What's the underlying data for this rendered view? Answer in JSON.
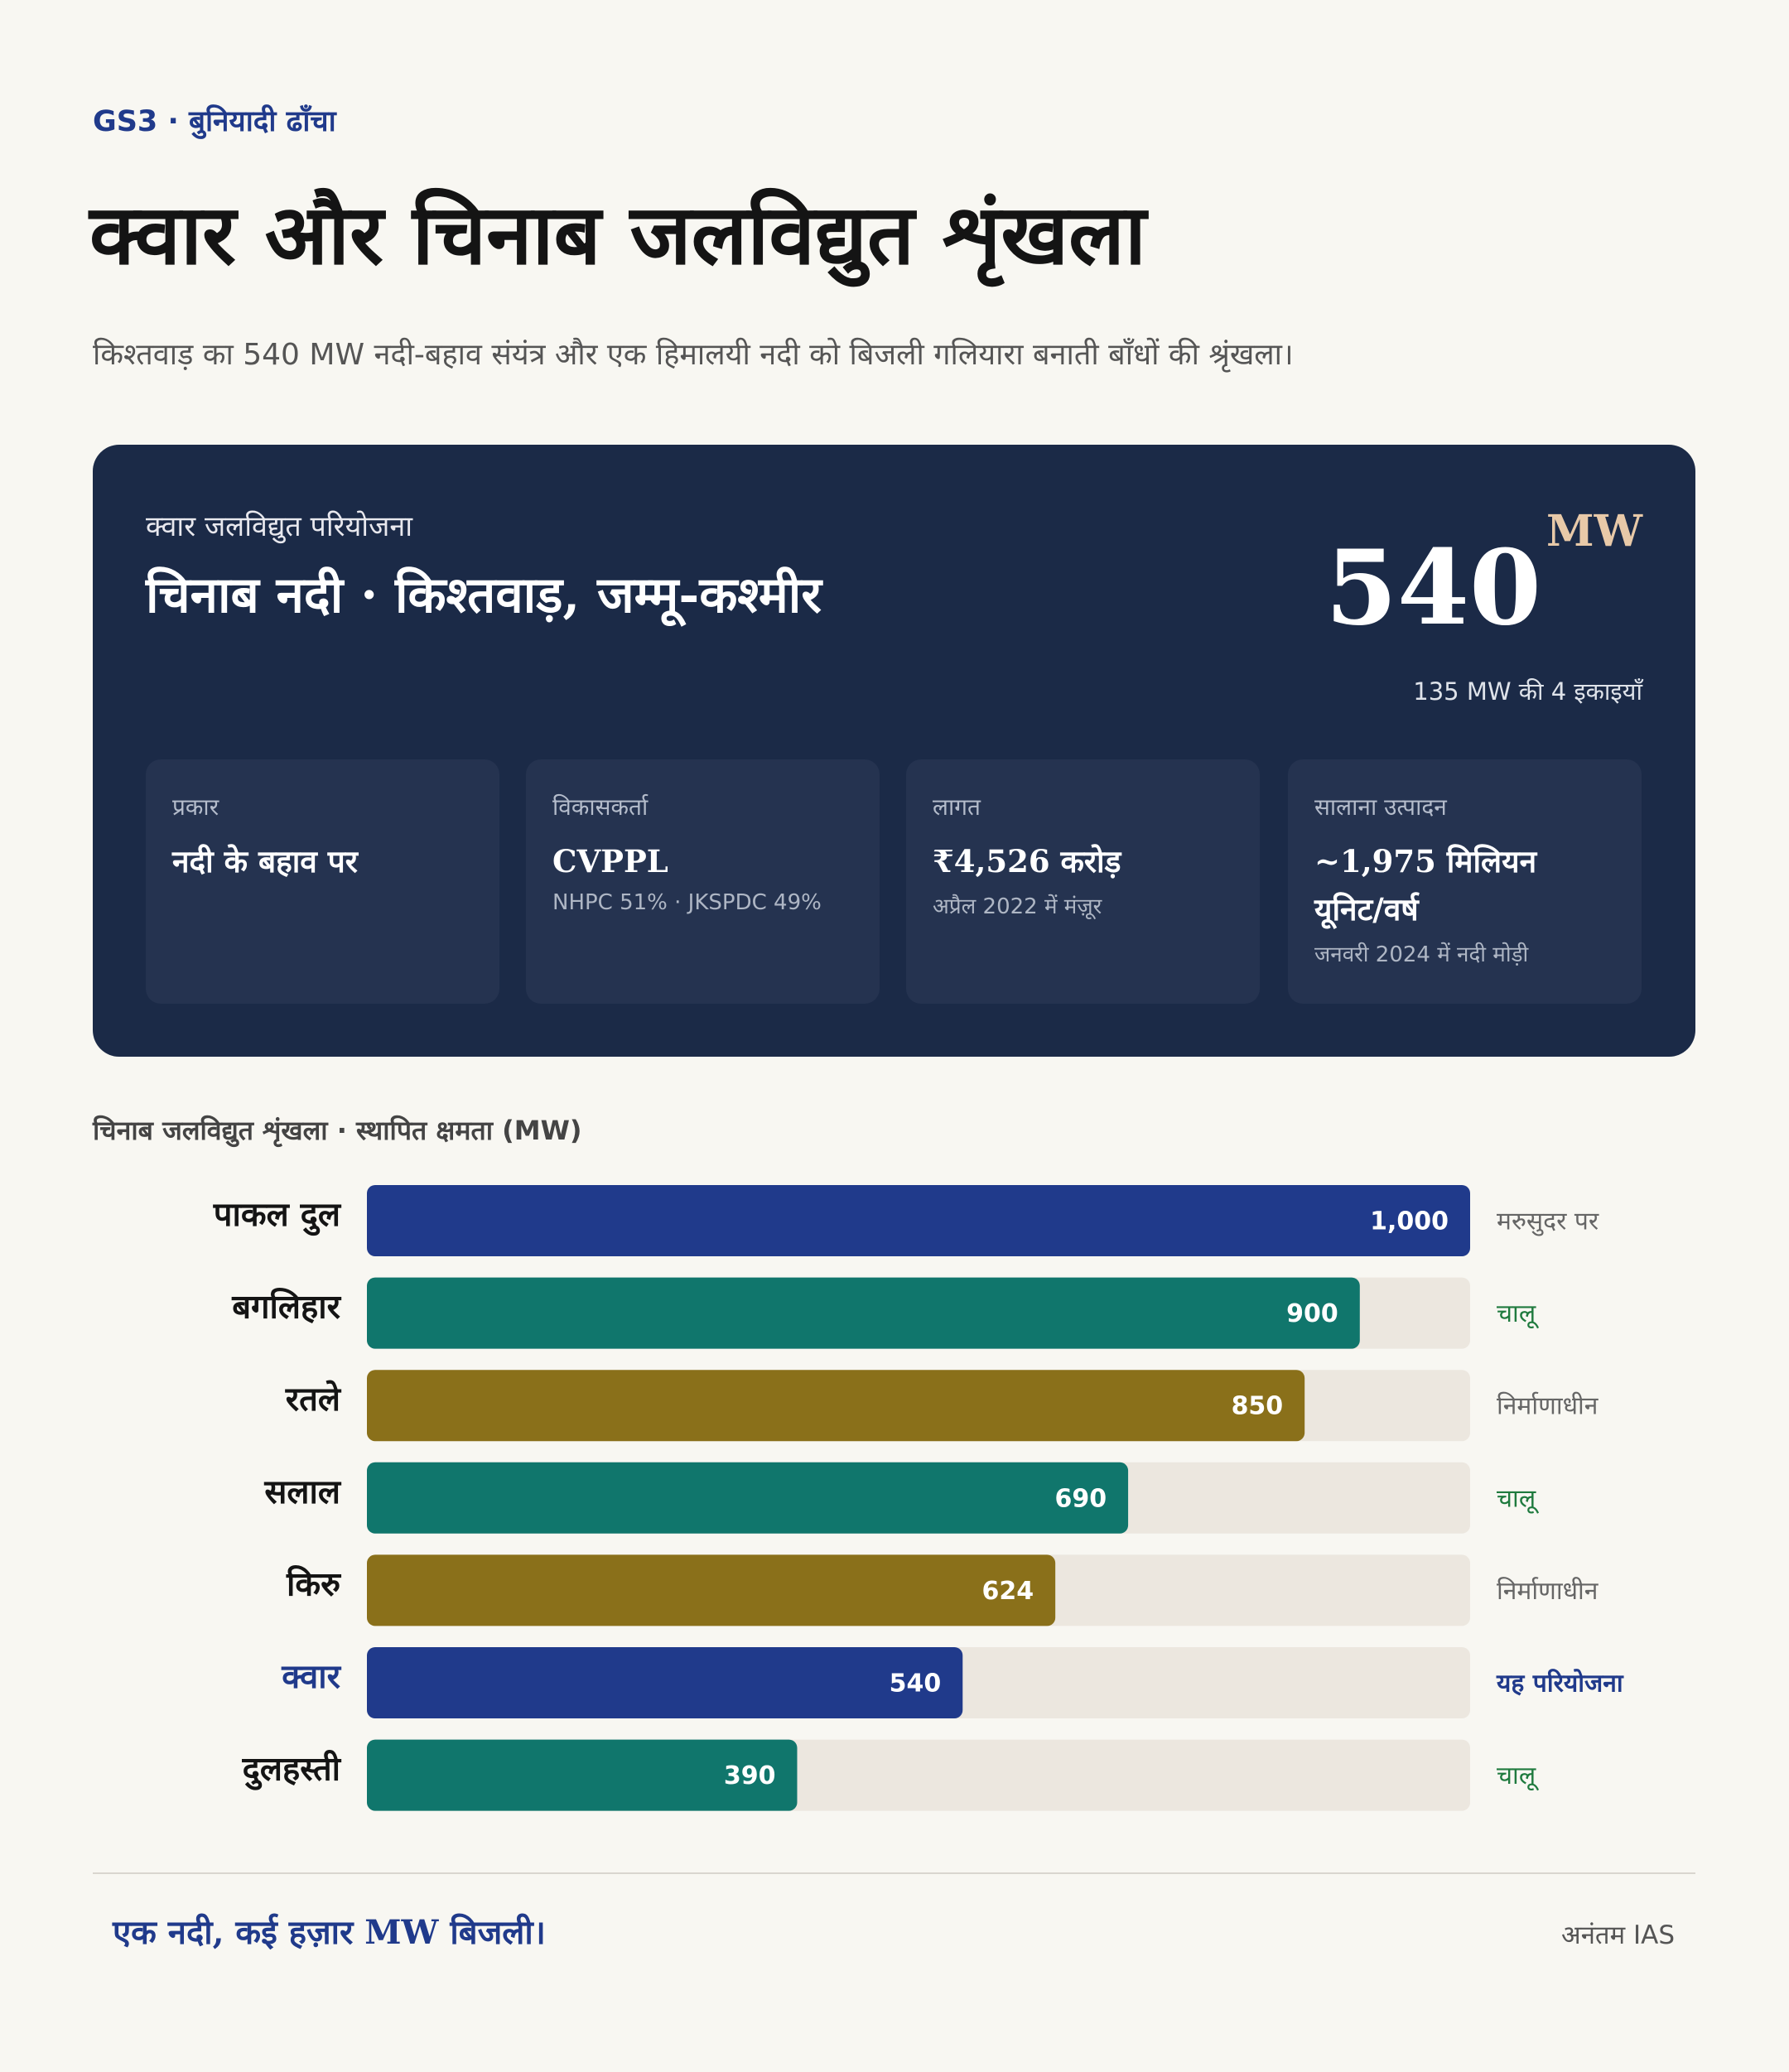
{
  "header": {
    "kicker": "GS3 · बुनियादी ढाँचा",
    "title": "क्वार और चिनाब जलविद्युत शृंखला",
    "subtitle": "किश्तवाड़ का 540 MW नदी-बहाव संयंत्र और एक हिमालयी नदी को बिजली गलियारा बनाती बाँधों की श्रृंखला।"
  },
  "card": {
    "label": "क्वार जलविद्युत परियोजना",
    "location": "चिनाब नदी · किश्तवाड़, जम्मू-कश्मीर",
    "capacity": 540,
    "unit": "MW",
    "note": "135 MW की 4 इकाइयाँ",
    "facts": [
      {
        "label": "प्रकार",
        "value": "नदी के बहाव पर"
      },
      {
        "label": "विकासकर्ता",
        "value": "CVPPL",
        "note": "NHPC 51% · JKSPDC 49%"
      },
      {
        "label": "लागत",
        "value": "₹4,526 करोड़",
        "note": "अप्रैल 2022 में मंज़ूर"
      },
      {
        "label": "सालाना उत्पादन",
        "value": "~1,975 मिलियन यूनिट/वर्ष",
        "note": "जनवरी 2024 में नदी मोड़ी"
      }
    ]
  },
  "chart_data": {
    "type": "bar",
    "orientation": "horizontal",
    "title": "चिनाब जलविद्युत शृंखला · स्थापित क्षमता (MW)",
    "categories": [
      "पाकल दुल",
      "बगलिहार",
      "रतले",
      "सलाल",
      "किरु",
      "क्वार",
      "दुलहस्ती"
    ],
    "values": [
      1000,
      900,
      850,
      690,
      624,
      540,
      390
    ],
    "value_labels": [
      "1,000",
      "900",
      "850",
      "690",
      "624",
      "540",
      "390"
    ],
    "colors": [
      "#203a8b",
      "#10766c",
      "#8a701a",
      "#10766c",
      "#8a701a",
      "#203a8b",
      "#10766c"
    ],
    "statuses": [
      "मरुसुदर पर",
      "चालू",
      "निर्माणाधीन",
      "चालू",
      "निर्माणाधीन",
      "यह परियोजना",
      "चालू"
    ],
    "status_colors": [
      "#666666",
      "#1f7a3e",
      "#666666",
      "#1f7a3e",
      "#666666",
      "#203a8b",
      "#1f7a3e"
    ],
    "highlight_index": 5,
    "xlim": [
      0,
      1000
    ]
  },
  "footer": {
    "tagline": "एक नदी, कई हज़ार MW बिजली।",
    "brand": "अनंतम IAS"
  }
}
